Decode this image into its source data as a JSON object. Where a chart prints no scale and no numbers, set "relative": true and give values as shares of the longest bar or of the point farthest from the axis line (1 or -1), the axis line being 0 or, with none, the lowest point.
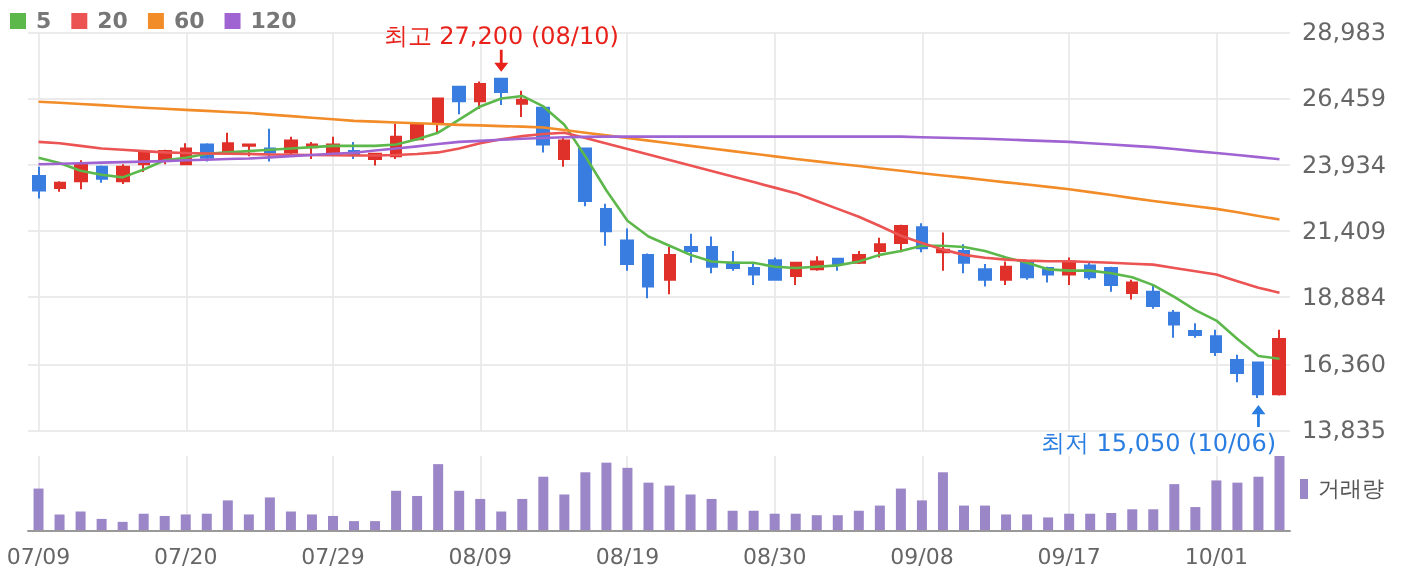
{
  "chart_data": [
    {
      "type": "candlestick",
      "categories": [
        null,
        null,
        null,
        null,
        null,
        null,
        null,
        null,
        null,
        null,
        null,
        null,
        null,
        null,
        null,
        null,
        null,
        null,
        null,
        null,
        null,
        null,
        null,
        null,
        null,
        null,
        null,
        null,
        null,
        null,
        null,
        null,
        null,
        null,
        null,
        null,
        null,
        null,
        null,
        null,
        null,
        null,
        null,
        null,
        null,
        null,
        null,
        null,
        null,
        null,
        null,
        null,
        null,
        null,
        null,
        null,
        null,
        null,
        null,
        null
      ],
      "ohlc": [
        [
          23500,
          23850,
          22650,
          22950
        ],
        [
          23050,
          23300,
          22900,
          23250
        ],
        [
          23300,
          24100,
          23000,
          23950
        ],
        [
          23850,
          23900,
          23250,
          23400
        ],
        [
          23300,
          23950,
          23200,
          23850
        ],
        [
          23950,
          24450,
          23650,
          24400
        ],
        [
          24150,
          24500,
          23950,
          24450
        ],
        [
          23950,
          24750,
          23950,
          24550
        ],
        [
          24700,
          24750,
          24050,
          24200
        ],
        [
          24400,
          25150,
          24300,
          24750
        ],
        [
          24650,
          24700,
          24250,
          24700
        ],
        [
          24550,
          25300,
          24050,
          24400
        ],
        [
          24400,
          25000,
          24300,
          24850
        ],
        [
          24600,
          24800,
          24150,
          24700
        ],
        [
          24400,
          25000,
          24400,
          24700
        ],
        [
          24450,
          24800,
          24150,
          24300
        ],
        [
          24150,
          24350,
          23900,
          24350
        ],
        [
          24250,
          25500,
          24150,
          25000
        ],
        [
          24900,
          25500,
          24850,
          25450
        ],
        [
          25550,
          26450,
          25100,
          26450
        ],
        [
          26900,
          26900,
          25850,
          26350
        ],
        [
          26350,
          27100,
          26050,
          27000
        ],
        [
          27200,
          27200,
          26200,
          26700
        ],
        [
          26250,
          26750,
          25750,
          26400
        ],
        [
          26100,
          26100,
          24400,
          24700
        ],
        [
          24150,
          25000,
          23850,
          24850
        ],
        [
          24550,
          24550,
          22350,
          22550
        ],
        [
          22250,
          22450,
          20850,
          21400
        ],
        [
          21050,
          21500,
          19900,
          20150
        ],
        [
          20500,
          20550,
          18850,
          19300
        ],
        [
          19550,
          20800,
          19000,
          20500
        ],
        [
          20800,
          21300,
          20200,
          20650
        ],
        [
          20800,
          21200,
          19800,
          20050
        ],
        [
          20200,
          20650,
          19900,
          20000
        ],
        [
          20000,
          20150,
          19350,
          19750
        ],
        [
          20300,
          20400,
          19550,
          19550
        ],
        [
          19700,
          20200,
          19350,
          20200
        ],
        [
          19950,
          20450,
          19900,
          20250
        ],
        [
          20350,
          20350,
          19900,
          20150
        ],
        [
          20200,
          20650,
          20150,
          20500
        ],
        [
          20650,
          21150,
          20400,
          20900
        ],
        [
          20950,
          21650,
          20600,
          21600
        ],
        [
          21550,
          21700,
          20600,
          20750
        ],
        [
          20600,
          21350,
          19900,
          20700
        ],
        [
          20650,
          20900,
          19800,
          20200
        ],
        [
          19950,
          20150,
          19300,
          19550
        ],
        [
          19550,
          20250,
          19350,
          20050
        ],
        [
          20200,
          20200,
          19550,
          19650
        ],
        [
          20000,
          20050,
          19450,
          19750
        ],
        [
          19750,
          20400,
          19350,
          20250
        ],
        [
          20100,
          20200,
          19550,
          19650
        ],
        [
          20000,
          20050,
          19100,
          19350
        ],
        [
          19050,
          19550,
          18800,
          19450
        ],
        [
          19100,
          19350,
          18450,
          18550
        ],
        [
          18300,
          18400,
          17350,
          17850
        ],
        [
          17600,
          17900,
          17350,
          17450
        ],
        [
          17400,
          17650,
          16650,
          16800
        ],
        [
          16500,
          16700,
          15650,
          16000
        ],
        [
          16400,
          16400,
          15050,
          15200
        ],
        [
          15200,
          17650,
          15150,
          17300
        ]
      ],
      "series": [
        {
          "type": "line",
          "name": "5",
          "color": "#5cb84a",
          "values": [
            24200,
            24000,
            23700,
            23550,
            23450,
            23750,
            24100,
            24200,
            24350,
            24400,
            24450,
            24500,
            24550,
            24600,
            24650,
            24650,
            24650,
            24700,
            24900,
            25150,
            25650,
            26150,
            26450,
            26550,
            26150,
            25450,
            24250,
            22950,
            21800,
            21200,
            20850,
            20500,
            20250,
            20200,
            20200,
            20050,
            20000,
            20050,
            20100,
            20250,
            20500,
            20650,
            20850,
            20850,
            20800,
            20650,
            20400,
            20200,
            19950,
            19900,
            19900,
            19800,
            19650,
            19350,
            18900,
            18400,
            18000,
            17300,
            16650,
            16550
          ]
        },
        {
          "type": "line",
          "name": "20",
          "color": "#ec5353",
          "values": [
            24800,
            24750,
            24650,
            24550,
            24500,
            24450,
            24400,
            24380,
            24360,
            24350,
            24340,
            24320,
            24310,
            24300,
            24290,
            24280,
            24280,
            24300,
            24340,
            24400,
            24550,
            24750,
            24900,
            25020,
            25100,
            25150,
            24950,
            24740,
            24530,
            24320,
            24110,
            23900,
            23690,
            23480,
            23270,
            23060,
            22850,
            22550,
            22250,
            21950,
            21600,
            21230,
            20950,
            20700,
            20500,
            20390,
            20320,
            20280,
            20260,
            20260,
            20230,
            20200,
            20160,
            20130,
            20000,
            19880,
            19750,
            19500,
            19250,
            19060
          ]
        },
        {
          "type": "line",
          "name": "60",
          "color": "#f28c28",
          "values": [
            26330,
            26290,
            26240,
            26200,
            26150,
            26100,
            26060,
            26020,
            25980,
            25940,
            25900,
            25840,
            25780,
            25720,
            25660,
            25600,
            25570,
            25540,
            25510,
            25480,
            25450,
            25430,
            25400,
            25380,
            25350,
            25250,
            25150,
            25050,
            24950,
            24850,
            24750,
            24650,
            24550,
            24450,
            24350,
            24250,
            24150,
            24060,
            23970,
            23880,
            23790,
            23700,
            23610,
            23520,
            23440,
            23350,
            23260,
            23180,
            23090,
            23000,
            22890,
            22780,
            22660,
            22550,
            22450,
            22350,
            22250,
            22120,
            21980,
            21850
          ]
        },
        {
          "type": "line",
          "name": "120",
          "color": "#a064d2",
          "values": [
            23950,
            23970,
            23990,
            24010,
            24030,
            24050,
            24070,
            24100,
            24120,
            24150,
            24170,
            24210,
            24260,
            24300,
            24350,
            24390,
            24470,
            24550,
            24630,
            24720,
            24800,
            24840,
            24880,
            24920,
            24950,
            24980,
            24990,
            25000,
            25000,
            25000,
            25000,
            25000,
            25000,
            25000,
            25000,
            25000,
            25000,
            25000,
            25000,
            25000,
            25000,
            25000,
            24980,
            24960,
            24940,
            24920,
            24890,
            24860,
            24830,
            24800,
            24750,
            24700,
            24650,
            24600,
            24530,
            24450,
            24380,
            24300,
            24220,
            24140
          ]
        }
      ],
      "ylim": [
        13835,
        28983
      ],
      "yticks": [
        {
          "value": 13835,
          "label": "13,835"
        },
        {
          "value": 16360,
          "label": "16,360"
        },
        {
          "value": 18884,
          "label": "18,884"
        },
        {
          "value": 21409,
          "label": "21,409"
        },
        {
          "value": 23934,
          "label": "23,934"
        },
        {
          "value": 26459,
          "label": "26,459"
        },
        {
          "value": 28983,
          "label": "28,983"
        }
      ],
      "grid": true,
      "legend": "top left",
      "tick_labels": "y",
      "annotations": [
        "최고 27,200 (08/10)",
        "최저 15,050 (10/06)"
      ]
    },
    {
      "type": "bar",
      "categories": [
        "07/09",
        null,
        null,
        null,
        null,
        null,
        null,
        "07/20",
        null,
        null,
        null,
        null,
        null,
        null,
        "07/29",
        null,
        null,
        null,
        null,
        null,
        null,
        "08/09",
        null,
        null,
        null,
        null,
        null,
        null,
        "08/19",
        null,
        null,
        null,
        null,
        null,
        null,
        "08/30",
        null,
        null,
        null,
        null,
        null,
        null,
        "09/08",
        null,
        null,
        null,
        null,
        null,
        null,
        "09/17",
        null,
        null,
        null,
        null,
        null,
        null,
        "10/01",
        null,
        null,
        null
      ],
      "relative": true,
      "grid": "x",
      "legend": "top right",
      "tick_labels": "x",
      "series": [
        {
          "name": "거래량",
          "color": "#9b87c8",
          "values": [
            0.56,
            0.21,
            0.25,
            0.15,
            0.11,
            0.22,
            0.19,
            0.21,
            0.22,
            0.4,
            0.21,
            0.44,
            0.25,
            0.21,
            0.19,
            0.12,
            0.12,
            0.53,
            0.46,
            0.89,
            0.53,
            0.42,
            0.25,
            0.42,
            0.72,
            0.48,
            0.78,
            0.91,
            0.84,
            0.64,
            0.6,
            0.48,
            0.42,
            0.26,
            0.26,
            0.22,
            0.22,
            0.2,
            0.2,
            0.26,
            0.33,
            0.56,
            0.4,
            0.78,
            0.33,
            0.33,
            0.21,
            0.21,
            0.17,
            0.22,
            0.22,
            0.23,
            0.28,
            0.28,
            0.62,
            0.31,
            0.67,
            0.64,
            0.72,
            1
          ]
        }
      ]
    }
  ]
}
